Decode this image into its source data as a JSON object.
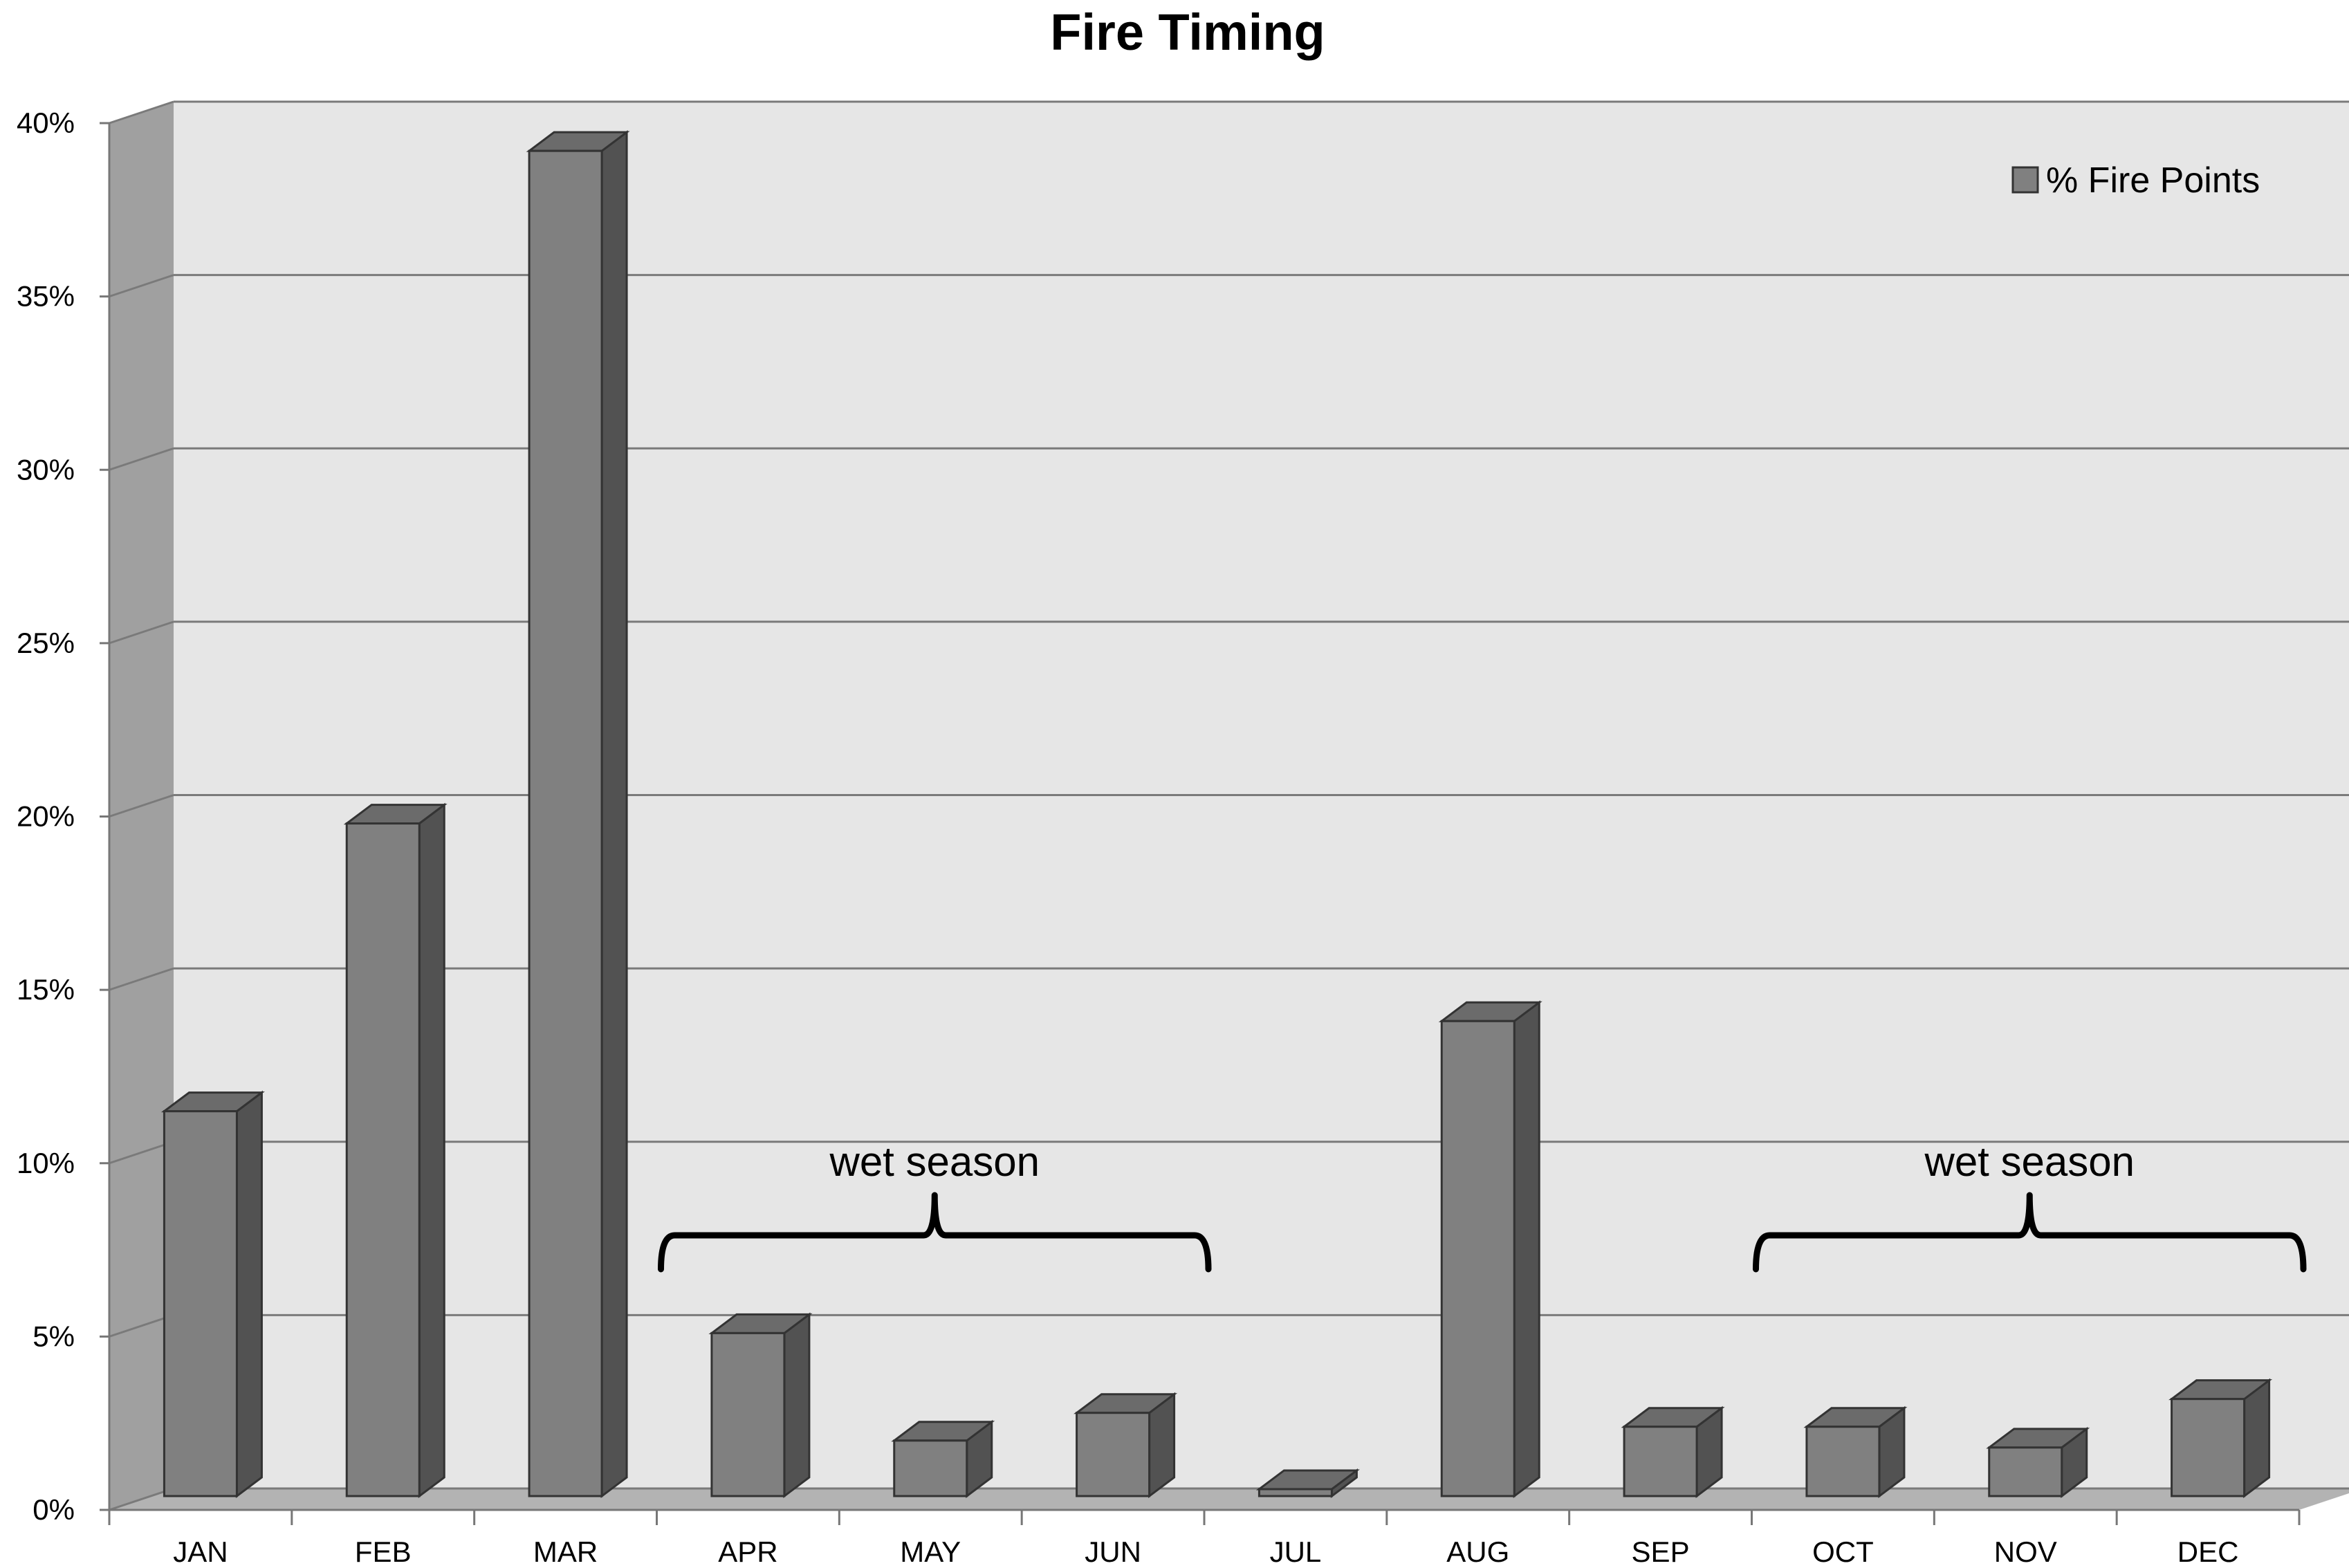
{
  "chart_data": {
    "type": "bar",
    "title": "Fire Timing",
    "xlabel": "",
    "ylabel": "",
    "categories": [
      "JAN",
      "FEB",
      "MAR",
      "APR",
      "MAY",
      "JUN",
      "JUL",
      "AUG",
      "SEP",
      "OCT",
      "NOV",
      "DEC"
    ],
    "series": [
      {
        "name": "% Fire Points",
        "values": [
          11.1,
          19.4,
          38.8,
          4.7,
          1.6,
          2.4,
          0.2,
          13.7,
          2.0,
          2.0,
          1.4,
          2.8
        ],
        "color": "#808080"
      }
    ],
    "ylim": [
      0,
      40
    ],
    "yticks": [
      "0%",
      "5%",
      "10%",
      "15%",
      "20%",
      "25%",
      "30%",
      "35%",
      "40%"
    ],
    "grid": true,
    "style": "3d-bar",
    "legend_position": "top-right",
    "annotations": [
      {
        "text": "wet season",
        "from": "APR",
        "to": "JUN"
      },
      {
        "text": "wet season",
        "from": "OCT",
        "to": "DEC"
      }
    ],
    "colors": {
      "wall": "#e6e6e6",
      "side_wall": "#a0a0a0",
      "floor": "#b3b3b3",
      "bar_front": "#808080",
      "bar_side": "#525252",
      "bar_top": "#6b6b6b",
      "grid": "#7a7a7a"
    }
  }
}
